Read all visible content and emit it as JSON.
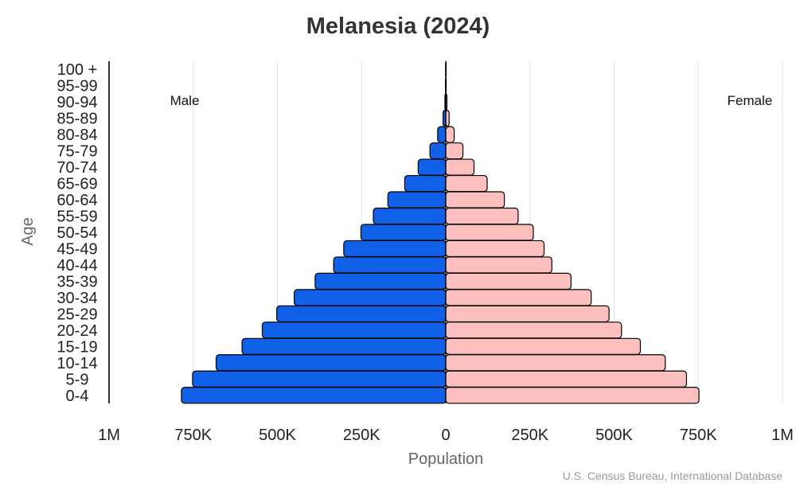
{
  "chart_data": {
    "type": "bar",
    "orientation": "horizontal",
    "title": "Melanesia (2024)",
    "xlabel": "Population",
    "ylabel": "Age",
    "xlim": [
      -1000000,
      1000000
    ],
    "x_tick_values": [
      -1000000,
      -750000,
      -500000,
      -250000,
      0,
      250000,
      500000,
      750000,
      1000000
    ],
    "x_tick_labels": [
      "1M",
      "750K",
      "500K",
      "250K",
      "0",
      "250K",
      "500K",
      "750K",
      "1M"
    ],
    "grid": true,
    "categories": [
      "100 +",
      "95-99",
      "90-94",
      "85-89",
      "80-84",
      "75-79",
      "70-74",
      "65-69",
      "60-64",
      "55-59",
      "50-54",
      "45-49",
      "40-44",
      "35-39",
      "30-34",
      "25-29",
      "20-24",
      "15-19",
      "10-14",
      "5-9",
      "0-4"
    ],
    "series": [
      {
        "name": "Male",
        "color": "#1060e8",
        "values": [
          300,
          800,
          2500,
          8000,
          24000,
          47000,
          82000,
          122000,
          172000,
          215000,
          252000,
          303000,
          333000,
          388000,
          450000,
          502000,
          545000,
          605000,
          682000,
          752000,
          785000
        ]
      },
      {
        "name": "Female",
        "color": "#fbc0bd",
        "values": [
          400,
          1200,
          3500,
          10000,
          25000,
          51000,
          84000,
          123000,
          174000,
          215000,
          260000,
          292000,
          315000,
          372000,
          432000,
          485000,
          522000,
          578000,
          652000,
          715000,
          752000
        ]
      }
    ],
    "source": "U.S. Census Bureau, International Database"
  }
}
